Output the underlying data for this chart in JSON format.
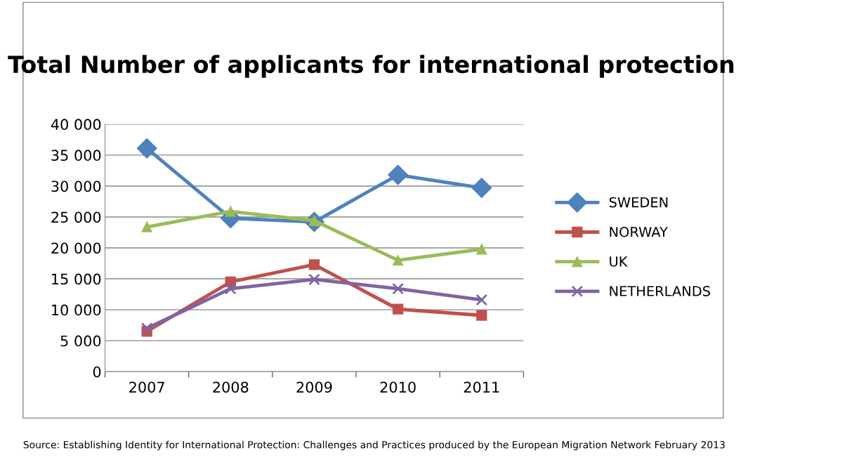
{
  "chart_data": {
    "type": "line",
    "title": "Total Number of applicants for international protection",
    "categories": [
      "2007",
      "2008",
      "2009",
      "2010",
      "2011"
    ],
    "series": [
      {
        "name": "SWEDEN",
        "color": "#4f81bd",
        "marker": "diamond",
        "values": [
          36100,
          24800,
          24200,
          31800,
          29700
        ]
      },
      {
        "name": "NORWAY",
        "color": "#c0504d",
        "marker": "square",
        "values": [
          6500,
          14500,
          17300,
          10100,
          9100
        ]
      },
      {
        "name": "UK",
        "color": "#9bbb59",
        "marker": "triangle",
        "values": [
          23400,
          25900,
          24400,
          18000,
          19800
        ]
      },
      {
        "name": "NETHERLANDS",
        "color": "#8064a2",
        "marker": "cross",
        "values": [
          7000,
          13400,
          14900,
          13400,
          11600
        ]
      }
    ],
    "ylim": [
      0,
      40000
    ],
    "yticks": [
      0,
      {
        "value": 5000,
        "label": "5 000"
      },
      {
        "value": 10000,
        "label": "10 000"
      },
      {
        "value": 15000,
        "label": "15 000"
      },
      {
        "value": 20000,
        "label": "20 000"
      },
      {
        "value": 25000,
        "label": "25 000"
      },
      {
        "value": 30000,
        "label": "30 000"
      },
      {
        "value": 35000,
        "label": "35 000"
      },
      {
        "value": 40000,
        "label": "40 000"
      }
    ],
    "grid": "y",
    "legend": "right",
    "line_style": "solid",
    "annotations": [
      "Source: Establishing Identity for International Protection: Challenges and Practices produced by the European Migration Network February 2013"
    ]
  }
}
